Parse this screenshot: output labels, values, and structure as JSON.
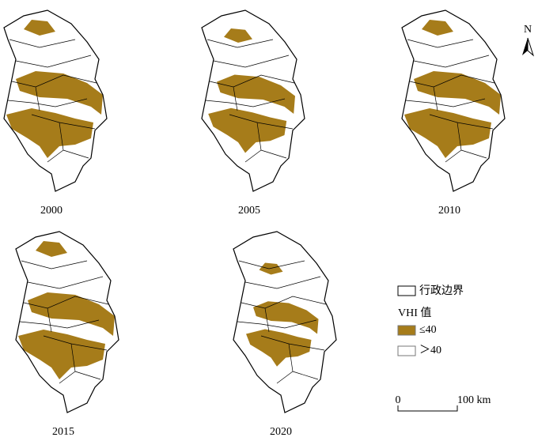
{
  "panels": [
    {
      "label": "2000"
    },
    {
      "label": "2005"
    },
    {
      "label": "2010"
    },
    {
      "label": "2015"
    },
    {
      "label": "2020"
    }
  ],
  "legend": {
    "boundary": "行政边界",
    "title": "VHI 值",
    "items": [
      {
        "label": "≤40",
        "color": "#a67c1a"
      },
      {
        "label": "＞40",
        "color": "#ffffff"
      }
    ]
  },
  "scale_bar": {
    "start": "0",
    "end": "100 km"
  },
  "north": "N"
}
